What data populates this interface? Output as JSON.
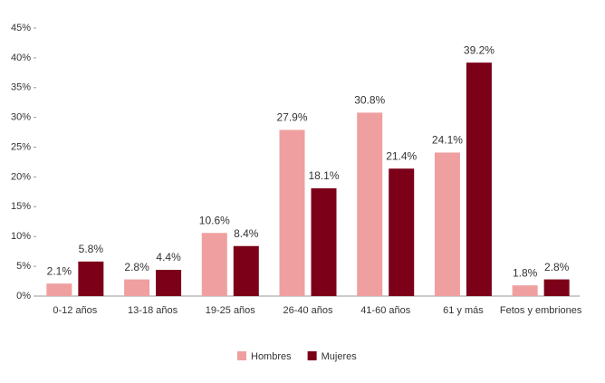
{
  "chart_data": {
    "type": "bar",
    "categories": [
      "0-12 años",
      "13-18 años",
      "19-25 años",
      "26-40 años",
      "41-60 años",
      "61 y más",
      "Fetos y embriones"
    ],
    "series": [
      {
        "name": "Hombres",
        "color": "#ef9f9f",
        "values": [
          2.1,
          2.8,
          10.6,
          27.9,
          30.8,
          24.1,
          1.8
        ],
        "value_labels": [
          "2.1%",
          "2.8%",
          "10.6%",
          "27.9%",
          "30.8%",
          "24.1%",
          "1.8%"
        ]
      },
      {
        "name": "Mujeres",
        "color": "#7b0018",
        "values": [
          5.8,
          4.4,
          8.4,
          18.1,
          21.4,
          39.2,
          2.8
        ],
        "value_labels": [
          "5.8%",
          "4.4%",
          "8.4%",
          "18.1%",
          "21.4%",
          "39.2%",
          "2.8%"
        ]
      }
    ],
    "ylim": [
      0,
      45
    ],
    "yticks": [
      {
        "value": 0,
        "label": "0%"
      },
      {
        "value": 5,
        "label": "5%"
      },
      {
        "value": 10,
        "label": "10%"
      },
      {
        "value": 15,
        "label": "15%"
      },
      {
        "value": 20,
        "label": "20%"
      },
      {
        "value": 25,
        "label": "25%"
      },
      {
        "value": 30,
        "label": "30%"
      },
      {
        "value": 35,
        "label": "35%"
      },
      {
        "value": 40,
        "label": "40%"
      },
      {
        "value": 45,
        "label": "45%"
      }
    ],
    "grid": false,
    "legend": "bottom"
  }
}
